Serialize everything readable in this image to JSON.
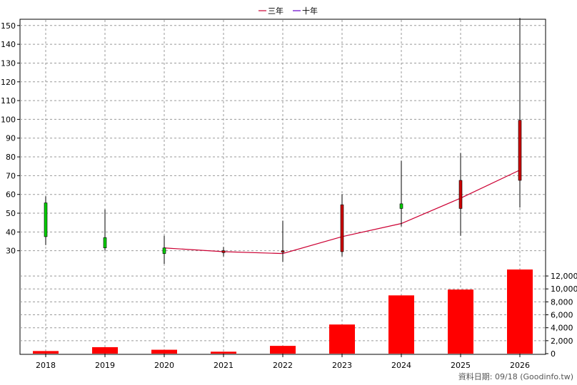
{
  "chart_data": {
    "type": "candlestick+bar",
    "legend": [
      {
        "label": "三年",
        "color": "#cc0033"
      },
      {
        "label": "十年",
        "color": "#6600cc"
      }
    ],
    "x_categories": [
      "2018",
      "2019",
      "2020",
      "2021",
      "2022",
      "2023",
      "2024",
      "2025",
      "2026"
    ],
    "price_axis": {
      "ylim": [
        20,
        156
      ],
      "ticks": [
        30,
        40,
        50,
        60,
        70,
        80,
        90,
        100,
        110,
        120,
        130,
        140,
        150
      ]
    },
    "candles": [
      {
        "x": "2018",
        "open": 37.5,
        "close": 55.5,
        "high": 59,
        "low": 33,
        "color": "#00cc00"
      },
      {
        "x": "2019",
        "open": 31.5,
        "close": 37,
        "high": 52,
        "low": 30,
        "color": "#00cc00"
      },
      {
        "x": "2020",
        "open": 28.5,
        "close": 31.5,
        "high": 38,
        "low": 23,
        "color": "#00cc00"
      },
      {
        "x": "2021",
        "open": 29,
        "close": 30,
        "high": 32,
        "low": 27,
        "color": "#cc0000"
      },
      {
        "x": "2022",
        "open": 29.5,
        "close": 30,
        "high": 46,
        "low": 24,
        "color": "#cc0000"
      },
      {
        "x": "2023",
        "open": 29.5,
        "close": 54.5,
        "high": 60,
        "low": 27,
        "color": "#cc0000"
      },
      {
        "x": "2024",
        "open": 52.5,
        "close": 55,
        "high": 78,
        "low": 43,
        "color": "#00cc00"
      },
      {
        "x": "2025",
        "open": 52.5,
        "close": 67.5,
        "high": 82,
        "low": 38,
        "color": "#cc0000"
      },
      {
        "x": "2026",
        "open": 67.5,
        "close": 99.5,
        "high": 154,
        "low": 53,
        "color": "#cc0000"
      }
    ],
    "lines": [
      {
        "name": "三年",
        "color": "#cc0033",
        "points": [
          [
            "2020",
            31.5
          ],
          [
            "2021",
            29.5
          ],
          [
            "2022",
            28.5
          ],
          [
            "2023",
            37.5
          ],
          [
            "2024",
            44.5
          ],
          [
            "2025",
            58
          ],
          [
            "2026",
            73
          ]
        ]
      }
    ],
    "volume_axis": {
      "ylim": [
        0,
        13000
      ],
      "ticks": [
        0,
        2000,
        4000,
        6000,
        8000,
        10000,
        12000
      ],
      "tick_labels": [
        "0",
        "2,000",
        "4,000",
        "6,000",
        "8,000",
        "10,000",
        "12,000"
      ]
    },
    "volumes": [
      {
        "x": "2018",
        "value": 400
      },
      {
        "x": "2019",
        "value": 1000
      },
      {
        "x": "2020",
        "value": 600
      },
      {
        "x": "2021",
        "value": 300
      },
      {
        "x": "2022",
        "value": 1200
      },
      {
        "x": "2023",
        "value": 4500
      },
      {
        "x": "2024",
        "value": 9000
      },
      {
        "x": "2025",
        "value": 9900
      },
      {
        "x": "2026",
        "value": 13000
      }
    ],
    "grid": true,
    "legend_position": "top-center"
  },
  "footer": {
    "source_text": "資料日期: 09/18  (Goodinfo.tw)"
  }
}
